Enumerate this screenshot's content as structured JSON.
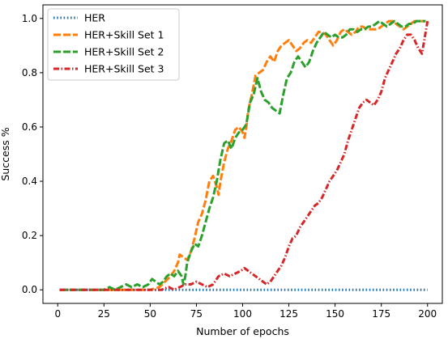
{
  "chart_data": {
    "type": "line",
    "xlabel": "Number of epochs",
    "ylabel": "Success %",
    "xlim": [
      -8,
      208
    ],
    "ylim": [
      -0.05,
      1.05
    ],
    "xticks": [
      0,
      25,
      50,
      75,
      100,
      125,
      150,
      175,
      200
    ],
    "xtick_labels": [
      "0",
      "25",
      "50",
      "75",
      "100",
      "125",
      "150",
      "175",
      "200"
    ],
    "yticks": [
      0.0,
      0.2,
      0.4,
      0.6,
      0.8,
      1.0
    ],
    "ytick_labels": [
      "0.0",
      "0.2",
      "0.4",
      "0.6",
      "0.8",
      "1.0"
    ],
    "grid": false,
    "legend_position": "top-left",
    "series": [
      {
        "name": "HER",
        "color": "#1f77b4",
        "style": "dotted",
        "points": [
          [
            1,
            0.0
          ],
          [
            50,
            0.0
          ],
          [
            100,
            0.0
          ],
          [
            150,
            0.0
          ],
          [
            200,
            0.0
          ]
        ]
      },
      {
        "name": "HER+Skill Set 1",
        "color": "#ff7f0e",
        "style": "dashed",
        "points": [
          [
            1,
            0.0
          ],
          [
            10,
            0.0
          ],
          [
            20,
            0.0
          ],
          [
            30,
            0.0
          ],
          [
            40,
            0.0
          ],
          [
            50,
            0.0
          ],
          [
            55,
            0.01
          ],
          [
            58,
            0.03
          ],
          [
            61,
            0.05
          ],
          [
            63,
            0.07
          ],
          [
            65,
            0.1
          ],
          [
            66,
            0.13
          ],
          [
            68,
            0.12
          ],
          [
            70,
            0.11
          ],
          [
            72,
            0.14
          ],
          [
            74,
            0.19
          ],
          [
            76,
            0.25
          ],
          [
            78,
            0.28
          ],
          [
            80,
            0.33
          ],
          [
            82,
            0.4
          ],
          [
            84,
            0.42
          ],
          [
            86,
            0.38
          ],
          [
            87,
            0.35
          ],
          [
            88,
            0.4
          ],
          [
            90,
            0.47
          ],
          [
            92,
            0.52
          ],
          [
            94,
            0.55
          ],
          [
            96,
            0.59
          ],
          [
            98,
            0.6
          ],
          [
            100,
            0.58
          ],
          [
            101,
            0.56
          ],
          [
            102,
            0.6
          ],
          [
            103,
            0.66
          ],
          [
            105,
            0.72
          ],
          [
            107,
            0.79
          ],
          [
            109,
            0.8
          ],
          [
            111,
            0.81
          ],
          [
            113,
            0.84
          ],
          [
            115,
            0.86
          ],
          [
            117,
            0.84
          ],
          [
            119,
            0.88
          ],
          [
            121,
            0.9
          ],
          [
            123,
            0.91
          ],
          [
            125,
            0.92
          ],
          [
            127,
            0.9
          ],
          [
            129,
            0.88
          ],
          [
            131,
            0.89
          ],
          [
            133,
            0.91
          ],
          [
            135,
            0.92
          ],
          [
            137,
            0.91
          ],
          [
            139,
            0.93
          ],
          [
            141,
            0.95
          ],
          [
            143,
            0.95
          ],
          [
            145,
            0.94
          ],
          [
            147,
            0.92
          ],
          [
            149,
            0.9
          ],
          [
            151,
            0.92
          ],
          [
            153,
            0.95
          ],
          [
            155,
            0.96
          ],
          [
            157,
            0.95
          ],
          [
            159,
            0.94
          ],
          [
            161,
            0.95
          ],
          [
            163,
            0.97
          ],
          [
            165,
            0.97
          ],
          [
            167,
            0.96
          ],
          [
            169,
            0.96
          ],
          [
            171,
            0.96
          ],
          [
            173,
            0.96
          ],
          [
            175,
            0.97
          ],
          [
            177,
            0.98
          ],
          [
            179,
            0.99
          ],
          [
            181,
            0.99
          ],
          [
            183,
            0.98
          ],
          [
            185,
            0.97
          ],
          [
            187,
            0.96
          ],
          [
            189,
            0.97
          ],
          [
            191,
            0.98
          ],
          [
            193,
            0.99
          ],
          [
            195,
            0.99
          ],
          [
            197,
            0.99
          ],
          [
            199,
            0.99
          ]
        ]
      },
      {
        "name": "HER+Skill Set 2",
        "color": "#2ca02c",
        "style": "dashed",
        "points": [
          [
            1,
            0.0
          ],
          [
            10,
            0.0
          ],
          [
            20,
            0.0
          ],
          [
            25,
            0.0
          ],
          [
            28,
            0.01
          ],
          [
            31,
            0.0
          ],
          [
            34,
            0.01
          ],
          [
            37,
            0.02
          ],
          [
            40,
            0.01
          ],
          [
            43,
            0.02
          ],
          [
            46,
            0.01
          ],
          [
            49,
            0.02
          ],
          [
            51,
            0.04
          ],
          [
            53,
            0.03
          ],
          [
            55,
            0.02
          ],
          [
            57,
            0.03
          ],
          [
            59,
            0.05
          ],
          [
            61,
            0.06
          ],
          [
            63,
            0.05
          ],
          [
            65,
            0.07
          ],
          [
            67,
            0.05
          ],
          [
            68,
            0.02
          ],
          [
            69,
            0.05
          ],
          [
            70,
            0.1
          ],
          [
            72,
            0.14
          ],
          [
            74,
            0.17
          ],
          [
            76,
            0.16
          ],
          [
            78,
            0.2
          ],
          [
            80,
            0.25
          ],
          [
            82,
            0.3
          ],
          [
            84,
            0.34
          ],
          [
            86,
            0.4
          ],
          [
            88,
            0.48
          ],
          [
            90,
            0.54
          ],
          [
            92,
            0.55
          ],
          [
            94,
            0.52
          ],
          [
            96,
            0.56
          ],
          [
            98,
            0.58
          ],
          [
            100,
            0.59
          ],
          [
            102,
            0.61
          ],
          [
            104,
            0.69
          ],
          [
            106,
            0.72
          ],
          [
            108,
            0.78
          ],
          [
            110,
            0.73
          ],
          [
            112,
            0.7
          ],
          [
            114,
            0.69
          ],
          [
            116,
            0.67
          ],
          [
            118,
            0.66
          ],
          [
            120,
            0.65
          ],
          [
            122,
            0.72
          ],
          [
            124,
            0.78
          ],
          [
            126,
            0.8
          ],
          [
            128,
            0.84
          ],
          [
            130,
            0.86
          ],
          [
            132,
            0.84
          ],
          [
            134,
            0.82
          ],
          [
            136,
            0.84
          ],
          [
            138,
            0.88
          ],
          [
            140,
            0.91
          ],
          [
            142,
            0.93
          ],
          [
            144,
            0.95
          ],
          [
            146,
            0.94
          ],
          [
            148,
            0.93
          ],
          [
            150,
            0.94
          ],
          [
            152,
            0.93
          ],
          [
            154,
            0.93
          ],
          [
            156,
            0.94
          ],
          [
            158,
            0.96
          ],
          [
            160,
            0.96
          ],
          [
            162,
            0.95
          ],
          [
            164,
            0.96
          ],
          [
            166,
            0.96
          ],
          [
            168,
            0.97
          ],
          [
            170,
            0.97
          ],
          [
            172,
            0.98
          ],
          [
            174,
            0.99
          ],
          [
            176,
            0.98
          ],
          [
            178,
            0.97
          ],
          [
            180,
            0.98
          ],
          [
            182,
            0.99
          ],
          [
            184,
            0.98
          ],
          [
            186,
            0.97
          ],
          [
            188,
            0.97
          ],
          [
            190,
            0.98
          ],
          [
            192,
            0.98
          ],
          [
            194,
            0.99
          ],
          [
            196,
            0.99
          ],
          [
            199,
            0.99
          ]
        ]
      },
      {
        "name": "HER+Skill Set 3",
        "color": "#d62728",
        "style": "dashdot",
        "points": [
          [
            1,
            0.0
          ],
          [
            10,
            0.0
          ],
          [
            20,
            0.0
          ],
          [
            30,
            0.0
          ],
          [
            40,
            0.0
          ],
          [
            50,
            0.0
          ],
          [
            56,
            0.0
          ],
          [
            60,
            0.01
          ],
          [
            63,
            0.0
          ],
          [
            66,
            0.01
          ],
          [
            69,
            0.02
          ],
          [
            72,
            0.02
          ],
          [
            75,
            0.03
          ],
          [
            78,
            0.02
          ],
          [
            81,
            0.01
          ],
          [
            84,
            0.02
          ],
          [
            87,
            0.05
          ],
          [
            90,
            0.06
          ],
          [
            93,
            0.05
          ],
          [
            96,
            0.06
          ],
          [
            99,
            0.07
          ],
          [
            101,
            0.08
          ],
          [
            103,
            0.07
          ],
          [
            105,
            0.06
          ],
          [
            107,
            0.05
          ],
          [
            109,
            0.04
          ],
          [
            111,
            0.03
          ],
          [
            113,
            0.02
          ],
          [
            115,
            0.03
          ],
          [
            117,
            0.05
          ],
          [
            119,
            0.07
          ],
          [
            121,
            0.09
          ],
          [
            123,
            0.12
          ],
          [
            125,
            0.16
          ],
          [
            127,
            0.19
          ],
          [
            129,
            0.2
          ],
          [
            131,
            0.23
          ],
          [
            133,
            0.25
          ],
          [
            135,
            0.27
          ],
          [
            137,
            0.29
          ],
          [
            139,
            0.31
          ],
          [
            141,
            0.32
          ],
          [
            143,
            0.34
          ],
          [
            145,
            0.37
          ],
          [
            147,
            0.4
          ],
          [
            149,
            0.42
          ],
          [
            151,
            0.44
          ],
          [
            153,
            0.47
          ],
          [
            155,
            0.5
          ],
          [
            157,
            0.55
          ],
          [
            159,
            0.59
          ],
          [
            161,
            0.63
          ],
          [
            163,
            0.67
          ],
          [
            165,
            0.69
          ],
          [
            167,
            0.7
          ],
          [
            169,
            0.69
          ],
          [
            171,
            0.68
          ],
          [
            173,
            0.7
          ],
          [
            175,
            0.73
          ],
          [
            177,
            0.78
          ],
          [
            179,
            0.81
          ],
          [
            181,
            0.84
          ],
          [
            183,
            0.87
          ],
          [
            185,
            0.89
          ],
          [
            187,
            0.92
          ],
          [
            189,
            0.94
          ],
          [
            191,
            0.94
          ],
          [
            193,
            0.92
          ],
          [
            195,
            0.89
          ],
          [
            197,
            0.87
          ],
          [
            199,
            0.95
          ],
          [
            200,
            0.99
          ]
        ]
      }
    ]
  }
}
